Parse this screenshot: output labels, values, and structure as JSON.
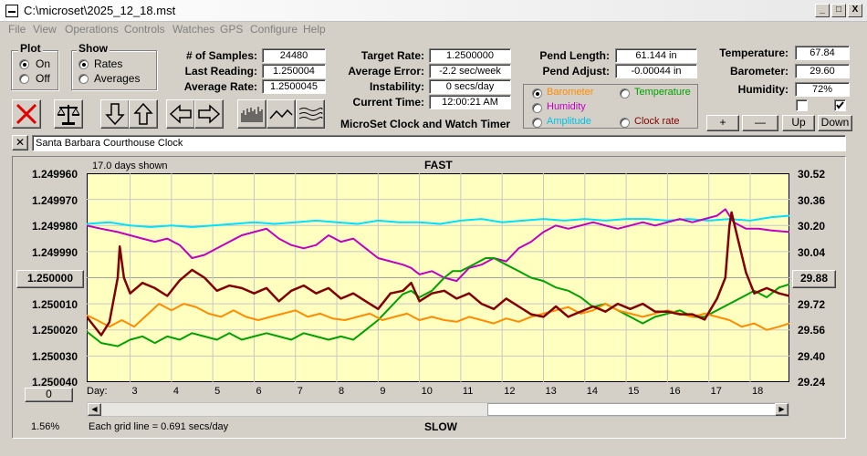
{
  "window": {
    "title": "C:\\microset\\2025_12_18.mst",
    "min": "_",
    "max": "□",
    "close": "X"
  },
  "menu": [
    "File",
    "View",
    "Operations",
    "Controls",
    "Watches",
    "GPS",
    "Configure",
    "Help"
  ],
  "plot_group": {
    "title": "Plot",
    "options": [
      "On",
      "Off"
    ],
    "selected": "On"
  },
  "show_group": {
    "title": "Show",
    "options": [
      "Rates",
      "Averages"
    ],
    "selected": "Rates"
  },
  "stats": {
    "samples_label": "# of Samples:",
    "samples": "24480",
    "last_reading_label": "Last Reading:",
    "last_reading": "1.250004",
    "average_rate_label": "Average Rate:",
    "average_rate": "1.2500045",
    "target_rate_label": "Target Rate:",
    "target_rate": "1.2500000",
    "average_error_label": "Average Error:",
    "average_error": "-2.2 sec/week",
    "instability_label": "Instability:",
    "instability": "0 secs/day",
    "current_time_label": "Current Time:",
    "current_time": "12:00:21 AM",
    "pend_length_label": "Pend Length:",
    "pend_length": "61.144 in",
    "pend_adjust_label": "Pend Adjust:",
    "pend_adjust": "-0.00044 in",
    "temperature_label": "Temperature:",
    "temperature": "67.84",
    "barometer_label": "Barometer:",
    "barometer": "29.60",
    "humidity_label": "Humidity:",
    "humidity": "72%"
  },
  "app_caption": "MicroSet Clock and Watch Timer",
  "sensor_options": {
    "selected": "Barometer",
    "items": [
      {
        "label": "Barometer",
        "color": "#ff8c00"
      },
      {
        "label": "Temperature",
        "color": "#00a000"
      },
      {
        "label": "Humidity",
        "color": "#c000c0"
      },
      {
        "label": "Amplitude",
        "color": "#00c0e0"
      },
      {
        "label": "Clock rate",
        "color": "#800000"
      }
    ]
  },
  "step_buttons": {
    "plus": "+",
    "minus": "—",
    "up": "Up",
    "down": "Down"
  },
  "watch_name": "Santa Barbara Courthouse Clock",
  "graph": {
    "days_shown": "17.0 days shown",
    "top_label": "FAST",
    "bottom_label": "SLOW",
    "grid_note": "Each grid line = 0.691 secs/day",
    "percent": "1.56%",
    "left_ticks": [
      "1.249960",
      "1.249970",
      "1.249980",
      "1.249990",
      "1.250000",
      "1.250010",
      "1.250020",
      "1.250030",
      "1.250040"
    ],
    "left_button": "1.250000",
    "left_bottom_button": "0",
    "right_ticks": [
      "30.52",
      "30.36",
      "30.20",
      "30.04",
      "29.88",
      "29.72",
      "29.56",
      "29.40",
      "29.24"
    ],
    "right_button": "29.88",
    "day_label": "Day:",
    "days": [
      "3",
      "4",
      "5",
      "6",
      "7",
      "8",
      "9",
      "10",
      "11",
      "12",
      "13",
      "14",
      "15",
      "16",
      "17",
      "18"
    ],
    "plot_background": "#ffffc0"
  },
  "chart_data": {
    "type": "line",
    "x_label": "Day:",
    "x_range": [
      1.95,
      18.95
    ],
    "y_left_range": [
      1.24996,
      1.25004
    ],
    "y_right_range": [
      29.24,
      30.52
    ],
    "series": [
      {
        "name": "Clock rate",
        "axis": "left",
        "color": "#800000",
        "x": [
          1.95,
          2.1,
          2.3,
          2.5,
          2.7,
          2.75,
          2.85,
          3.0,
          3.3,
          3.6,
          3.9,
          4.2,
          4.5,
          4.8,
          5.1,
          5.4,
          5.7,
          6.0,
          6.3,
          6.6,
          6.9,
          7.2,
          7.5,
          7.8,
          8.1,
          8.4,
          8.7,
          9.0,
          9.3,
          9.6,
          9.8,
          10.0,
          10.3,
          10.6,
          10.9,
          11.2,
          11.5,
          11.8,
          12.1,
          12.4,
          12.7,
          13.0,
          13.3,
          13.6,
          13.9,
          14.2,
          14.5,
          14.8,
          15.1,
          15.4,
          15.7,
          16.0,
          16.3,
          16.6,
          16.9,
          17.2,
          17.4,
          17.5,
          17.55,
          17.7,
          17.9,
          18.1,
          18.4,
          18.7,
          18.95
        ],
        "y": [
          1.250015,
          1.250018,
          1.250022,
          1.250017,
          1.25,
          1.249988,
          1.25,
          1.250006,
          1.250002,
          1.250004,
          1.250007,
          1.250001,
          1.249997,
          1.25,
          1.250005,
          1.250003,
          1.250004,
          1.250006,
          1.250004,
          1.250009,
          1.250005,
          1.250003,
          1.250006,
          1.250004,
          1.250008,
          1.250006,
          1.250009,
          1.250012,
          1.250006,
          1.250005,
          1.250002,
          1.250009,
          1.250006,
          1.250005,
          1.250008,
          1.250006,
          1.25001,
          1.250012,
          1.250008,
          1.250011,
          1.250014,
          1.250015,
          1.250011,
          1.250015,
          1.250013,
          1.250011,
          1.250013,
          1.25001,
          1.250012,
          1.25001,
          1.250013,
          1.250013,
          1.250014,
          1.250014,
          1.250016,
          1.250008,
          1.25,
          1.24998,
          1.249975,
          1.249985,
          1.249998,
          1.250006,
          1.250004,
          1.250006,
          1.250007
        ]
      },
      {
        "name": "Barometer",
        "axis": "right",
        "color": "#ff8c00",
        "x": [
          1.95,
          2.2,
          2.5,
          2.8,
          3.1,
          3.4,
          3.7,
          4.0,
          4.3,
          4.6,
          4.9,
          5.2,
          5.5,
          5.8,
          6.1,
          6.4,
          6.7,
          7.0,
          7.3,
          7.6,
          7.9,
          8.2,
          8.5,
          8.8,
          9.1,
          9.4,
          9.7,
          10.0,
          10.3,
          10.6,
          10.9,
          11.2,
          11.5,
          11.8,
          12.1,
          12.4,
          12.7,
          13.0,
          13.3,
          13.6,
          13.9,
          14.2,
          14.5,
          14.8,
          15.1,
          15.4,
          15.7,
          16.0,
          16.3,
          16.6,
          16.9,
          17.2,
          17.5,
          17.8,
          18.1,
          18.4,
          18.7,
          18.95
        ],
        "y": [
          29.65,
          29.62,
          29.58,
          29.62,
          29.58,
          29.65,
          29.72,
          29.68,
          29.72,
          29.7,
          29.66,
          29.64,
          29.68,
          29.64,
          29.62,
          29.64,
          29.66,
          29.68,
          29.64,
          29.66,
          29.63,
          29.62,
          29.64,
          29.66,
          29.62,
          29.64,
          29.66,
          29.62,
          29.64,
          29.62,
          29.61,
          29.64,
          29.62,
          29.6,
          29.63,
          29.61,
          29.64,
          29.66,
          29.68,
          29.7,
          29.66,
          29.68,
          29.72,
          29.68,
          29.66,
          29.64,
          29.66,
          29.68,
          29.66,
          29.64,
          29.66,
          29.64,
          29.62,
          29.58,
          29.6,
          29.56,
          29.58,
          29.6
        ]
      },
      {
        "name": "Temperature",
        "axis": "right",
        "color": "#00a000",
        "x": [
          1.95,
          2.3,
          2.7,
          3.0,
          3.3,
          3.6,
          3.9,
          4.2,
          4.5,
          4.8,
          5.1,
          5.4,
          5.7,
          6.0,
          6.3,
          6.6,
          6.9,
          7.2,
          7.5,
          7.8,
          8.1,
          8.4,
          8.7,
          9.0,
          9.3,
          9.6,
          9.8,
          10.0,
          10.3,
          10.6,
          10.8,
          11.0,
          11.3,
          11.6,
          11.8,
          12.1,
          12.4,
          12.7,
          13.0,
          13.3,
          13.6,
          13.9,
          14.2,
          14.5,
          14.8,
          15.1,
          15.4,
          15.7,
          16.0,
          16.3,
          16.6,
          16.9,
          17.2,
          17.5,
          17.8,
          18.1,
          18.4,
          18.7,
          18.95
        ],
        "y": [
          29.55,
          29.48,
          29.46,
          29.5,
          29.52,
          29.48,
          29.52,
          29.5,
          29.54,
          29.52,
          29.5,
          29.54,
          29.5,
          29.52,
          29.54,
          29.52,
          29.5,
          29.54,
          29.52,
          29.5,
          29.52,
          29.5,
          29.56,
          29.62,
          29.7,
          29.78,
          29.8,
          29.76,
          29.8,
          29.88,
          29.92,
          29.92,
          29.96,
          30.0,
          30.0,
          29.96,
          29.92,
          29.88,
          29.86,
          29.82,
          29.8,
          29.76,
          29.7,
          29.72,
          29.68,
          29.64,
          29.6,
          29.64,
          29.66,
          29.68,
          29.64,
          29.64,
          29.68,
          29.72,
          29.76,
          29.8,
          29.76,
          29.82,
          29.84
        ]
      },
      {
        "name": "Humidity",
        "axis": "right",
        "color": "#c000c0",
        "x": [
          1.95,
          2.3,
          2.7,
          3.0,
          3.3,
          3.6,
          3.9,
          4.2,
          4.5,
          4.8,
          5.1,
          5.4,
          5.7,
          6.0,
          6.3,
          6.6,
          6.9,
          7.2,
          7.5,
          7.8,
          8.1,
          8.4,
          8.7,
          9.0,
          9.3,
          9.6,
          9.8,
          10.0,
          10.3,
          10.6,
          10.9,
          11.2,
          11.5,
          11.8,
          12.1,
          12.4,
          12.7,
          13.0,
          13.3,
          13.6,
          13.9,
          14.2,
          14.5,
          14.8,
          15.1,
          15.4,
          15.7,
          16.0,
          16.3,
          16.6,
          16.9,
          17.2,
          17.4,
          17.6,
          17.9,
          18.2,
          18.5,
          18.95
        ],
        "y": [
          30.2,
          30.18,
          30.16,
          30.14,
          30.12,
          30.1,
          30.12,
          30.08,
          30.0,
          30.02,
          30.06,
          30.1,
          30.14,
          30.16,
          30.18,
          30.12,
          30.08,
          30.06,
          30.08,
          30.14,
          30.1,
          30.12,
          30.06,
          30.0,
          29.98,
          29.96,
          29.94,
          29.9,
          29.92,
          29.88,
          29.86,
          29.94,
          29.96,
          30.0,
          29.98,
          30.06,
          30.1,
          30.16,
          30.2,
          30.18,
          30.2,
          30.22,
          30.2,
          30.18,
          30.2,
          30.22,
          30.2,
          30.22,
          30.24,
          30.22,
          30.24,
          30.26,
          30.3,
          30.22,
          30.18,
          30.18,
          30.17,
          30.16
        ]
      },
      {
        "name": "Amplitude",
        "axis": "right",
        "color": "#00e0ff",
        "x": [
          1.95,
          2.5,
          3.0,
          3.5,
          4.0,
          4.5,
          5.0,
          5.5,
          6.0,
          6.5,
          7.0,
          7.5,
          8.0,
          8.5,
          9.0,
          9.5,
          10.0,
          10.5,
          11.0,
          11.5,
          12.0,
          12.5,
          13.0,
          13.5,
          14.0,
          14.5,
          15.0,
          15.5,
          16.0,
          16.5,
          17.0,
          17.5,
          18.0,
          18.5,
          18.95
        ],
        "y": [
          30.21,
          30.22,
          30.2,
          30.19,
          30.2,
          30.19,
          30.2,
          30.21,
          30.22,
          30.21,
          30.22,
          30.23,
          30.22,
          30.21,
          30.23,
          30.22,
          30.22,
          30.21,
          30.23,
          30.24,
          30.22,
          30.23,
          30.24,
          30.23,
          30.24,
          30.23,
          30.24,
          30.24,
          30.23,
          30.24,
          30.23,
          30.24,
          30.23,
          30.25,
          30.26
        ]
      }
    ]
  }
}
